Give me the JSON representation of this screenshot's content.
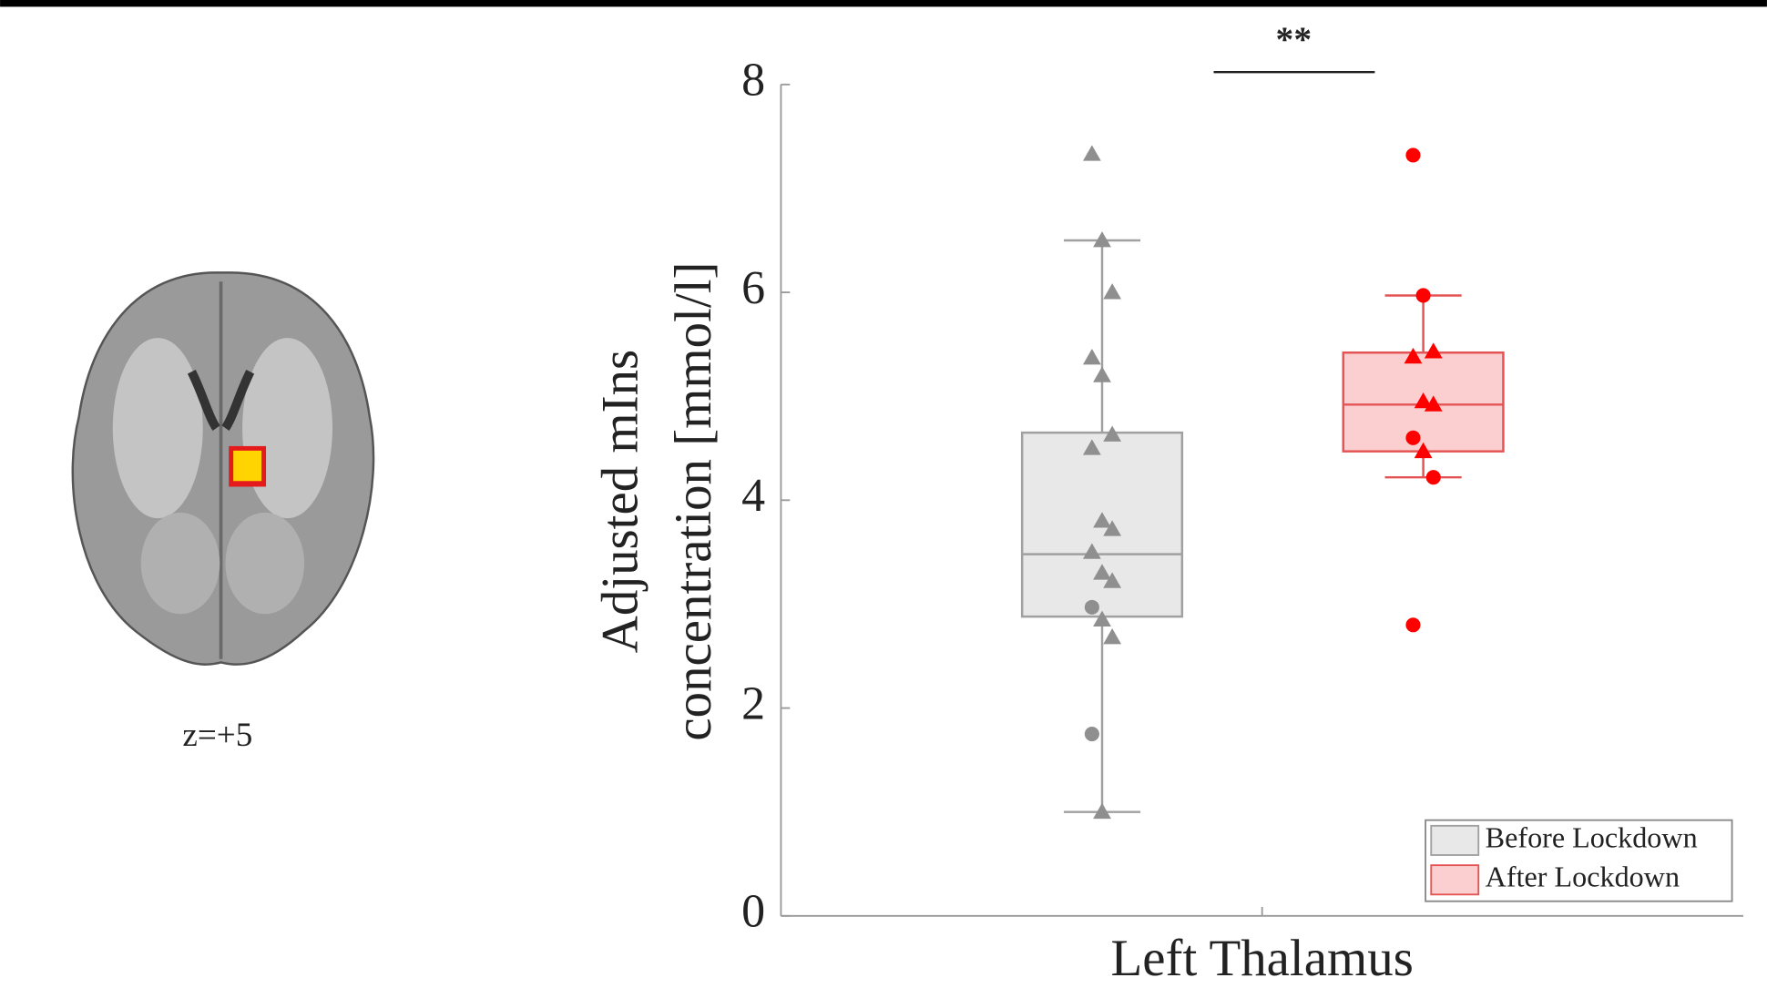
{
  "chart_data": {
    "type": "box",
    "annotation": "**",
    "image_label": "z=+5",
    "ylabel": [
      "Adjusted mIns",
      "concentration [mmol/l]"
    ],
    "categories": [
      "Left Thalamus"
    ],
    "ylim": [
      0,
      8
    ],
    "yticks": [
      0,
      2,
      4,
      6,
      8
    ],
    "legend": "lower right",
    "series": [
      {
        "name": "Before Lockdown",
        "color": "#8f8f8f",
        "fill": "#e8e8e8",
        "edge": "#a0a0a0",
        "whisker_low": 1.0,
        "q1": 2.88,
        "median": 3.48,
        "q3": 4.65,
        "whisker_high": 6.5,
        "values": [
          7.33,
          6.5,
          6.0,
          5.37,
          5.2,
          4.63,
          4.5,
          3.8,
          3.72,
          3.5,
          3.3,
          3.22,
          2.97,
          2.85,
          2.68,
          1.75,
          1.0
        ],
        "markers": [
          "triangle",
          "triangle",
          "triangle",
          "triangle",
          "triangle",
          "triangle",
          "triangle",
          "triangle",
          "triangle",
          "triangle",
          "triangle",
          "triangle",
          "circle",
          "triangle",
          "triangle",
          "circle",
          "triangle"
        ]
      },
      {
        "name": "After Lockdown",
        "color": "#ff0000",
        "fill": "#fbcfcf",
        "edge": "#e45454",
        "whisker_low": 4.22,
        "q1": 4.47,
        "median": 4.92,
        "q3": 5.42,
        "whisker_high": 5.97,
        "values": [
          7.32,
          5.97,
          5.43,
          5.38,
          4.95,
          4.92,
          4.6,
          4.47,
          4.22,
          2.8
        ],
        "markers": [
          "circle",
          "circle",
          "triangle",
          "triangle",
          "triangle",
          "triangle",
          "circle",
          "triangle",
          "circle",
          "circle"
        ]
      }
    ]
  }
}
